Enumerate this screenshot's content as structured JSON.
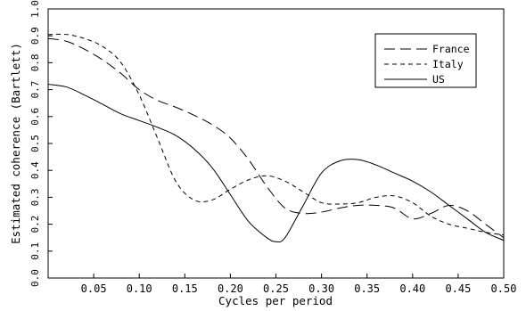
{
  "chart_data": {
    "type": "line",
    "title": "",
    "xlabel": "Cycles per period",
    "ylabel": "Estimated coherence (Bartlett)",
    "xlim": [
      0,
      0.5
    ],
    "ylim": [
      0,
      1.0
    ],
    "xticks": [
      "0.05",
      "0.10",
      "0.15",
      "0.20",
      "0.25",
      "0.30",
      "0.35",
      "0.40",
      "0.45",
      "0.50"
    ],
    "yticks": [
      "0.0",
      "0.1",
      "0.2",
      "0.3",
      "0.4",
      "0.5",
      "0.6",
      "0.7",
      "0.8",
      "0.9",
      "1.0"
    ],
    "grid": false,
    "legend_position": "top-right",
    "series": [
      {
        "name": "France",
        "style": "long-dash",
        "x": [
          0,
          0.02,
          0.04,
          0.06,
          0.08,
          0.1,
          0.12,
          0.14,
          0.16,
          0.18,
          0.2,
          0.22,
          0.24,
          0.26,
          0.28,
          0.3,
          0.32,
          0.34,
          0.36,
          0.38,
          0.4,
          0.42,
          0.44,
          0.46,
          0.48,
          0.5
        ],
        "y": [
          0.89,
          0.88,
          0.85,
          0.81,
          0.76,
          0.7,
          0.66,
          0.635,
          0.605,
          0.57,
          0.52,
          0.44,
          0.34,
          0.26,
          0.24,
          0.245,
          0.26,
          0.27,
          0.27,
          0.26,
          0.22,
          0.24,
          0.27,
          0.25,
          0.2,
          0.15
        ]
      },
      {
        "name": "Italy",
        "style": "short-dash",
        "x": [
          0,
          0.02,
          0.04,
          0.06,
          0.08,
          0.1,
          0.12,
          0.14,
          0.16,
          0.18,
          0.2,
          0.22,
          0.24,
          0.26,
          0.28,
          0.3,
          0.32,
          0.34,
          0.36,
          0.38,
          0.4,
          0.42,
          0.44,
          0.46,
          0.48,
          0.5
        ],
        "y": [
          0.905,
          0.905,
          0.89,
          0.86,
          0.8,
          0.68,
          0.52,
          0.36,
          0.29,
          0.29,
          0.33,
          0.365,
          0.38,
          0.36,
          0.32,
          0.28,
          0.275,
          0.28,
          0.3,
          0.305,
          0.28,
          0.23,
          0.2,
          0.185,
          0.17,
          0.16
        ]
      },
      {
        "name": "US",
        "style": "solid",
        "x": [
          0,
          0.02,
          0.04,
          0.06,
          0.08,
          0.1,
          0.12,
          0.14,
          0.16,
          0.18,
          0.2,
          0.22,
          0.24,
          0.25,
          0.26,
          0.28,
          0.3,
          0.32,
          0.34,
          0.36,
          0.38,
          0.4,
          0.42,
          0.44,
          0.46,
          0.48,
          0.5
        ],
        "y": [
          0.72,
          0.71,
          0.68,
          0.645,
          0.61,
          0.585,
          0.56,
          0.53,
          0.48,
          0.41,
          0.31,
          0.21,
          0.15,
          0.135,
          0.15,
          0.27,
          0.39,
          0.435,
          0.44,
          0.42,
          0.39,
          0.36,
          0.32,
          0.27,
          0.22,
          0.17,
          0.14
        ]
      }
    ]
  }
}
